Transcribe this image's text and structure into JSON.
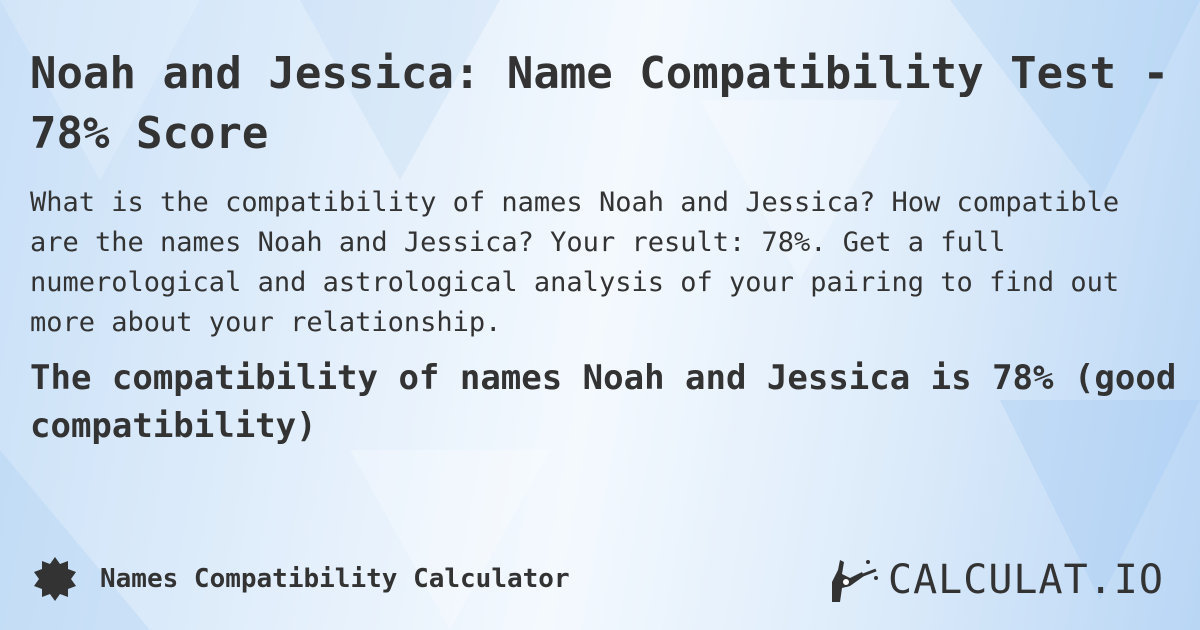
{
  "title": "Noah and Jessica: Name Compatibility Test - 78% Score",
  "description": "What is the compatibility of names Noah and Jessica? How compatible are the names Noah and Jessica? Your result: 78%. Get a full numerological and astrological analysis of your pairing to find out more about your relationship.",
  "result": "The compatibility of names Noah and Jessica is 78% (good compatibility)",
  "footer": {
    "calculator_name": "Names Compatibility Calculator",
    "icon": "badge-icon"
  },
  "logo": {
    "text": "CALCULAT.IO"
  },
  "colors": {
    "text": "#333333",
    "background": "#dcebfa"
  }
}
